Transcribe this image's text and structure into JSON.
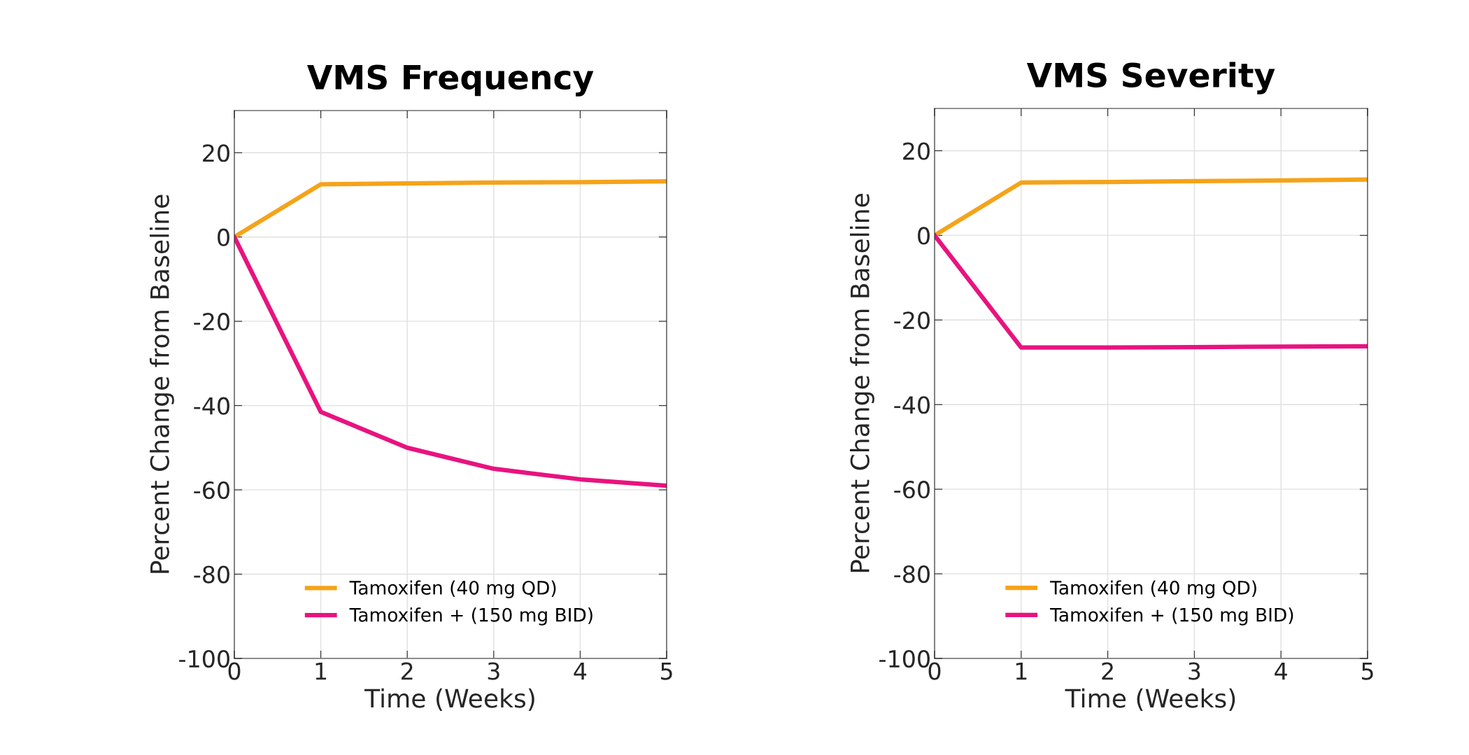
{
  "chart_data": [
    {
      "type": "line",
      "title": "VMS Frequency",
      "xlabel": "Time (Weeks)",
      "ylabel": "Percent Change from Baseline",
      "x": [
        0,
        1,
        2,
        3,
        4,
        5
      ],
      "xlim": [
        0,
        5
      ],
      "xticks": [
        0,
        1,
        2,
        3,
        4,
        5
      ],
      "ylim": [
        -100,
        30
      ],
      "yticks": [
        -100,
        -80,
        -60,
        -40,
        -20,
        0,
        20
      ],
      "grid": true,
      "legend": "bottom",
      "line_style": "solid",
      "marker": "none",
      "series": [
        {
          "name": "Tamoxifen (40 mg QD)",
          "color": "#f5a31a",
          "values": [
            0,
            12.5,
            12.7,
            12.9,
            13.0,
            13.2
          ]
        },
        {
          "name": "Tamoxifen + (150 mg BID)",
          "color": "#e8137f",
          "values": [
            0,
            -41.5,
            -50,
            -55,
            -57.5,
            -59
          ]
        }
      ]
    },
    {
      "type": "line",
      "title": "VMS Severity",
      "xlabel": "Time (Weeks)",
      "ylabel": "Percent Change from Baseline",
      "x": [
        0,
        1,
        2,
        3,
        4,
        5
      ],
      "xlim": [
        0,
        5
      ],
      "xticks": [
        0,
        1,
        2,
        3,
        4,
        5
      ],
      "ylim": [
        -100,
        30
      ],
      "yticks": [
        -100,
        -80,
        -60,
        -40,
        -20,
        0,
        20
      ],
      "grid": true,
      "legend": "bottom",
      "line_style": "solid",
      "marker": "none",
      "series": [
        {
          "name": "Tamoxifen (40 mg QD)",
          "color": "#f5a31a",
          "values": [
            0,
            12.5,
            12.6,
            12.8,
            13.0,
            13.2
          ]
        },
        {
          "name": "Tamoxifen + (150 mg BID)",
          "color": "#e8137f",
          "values": [
            0,
            -26.5,
            -26.5,
            -26.4,
            -26.3,
            -26.2
          ]
        }
      ]
    }
  ]
}
